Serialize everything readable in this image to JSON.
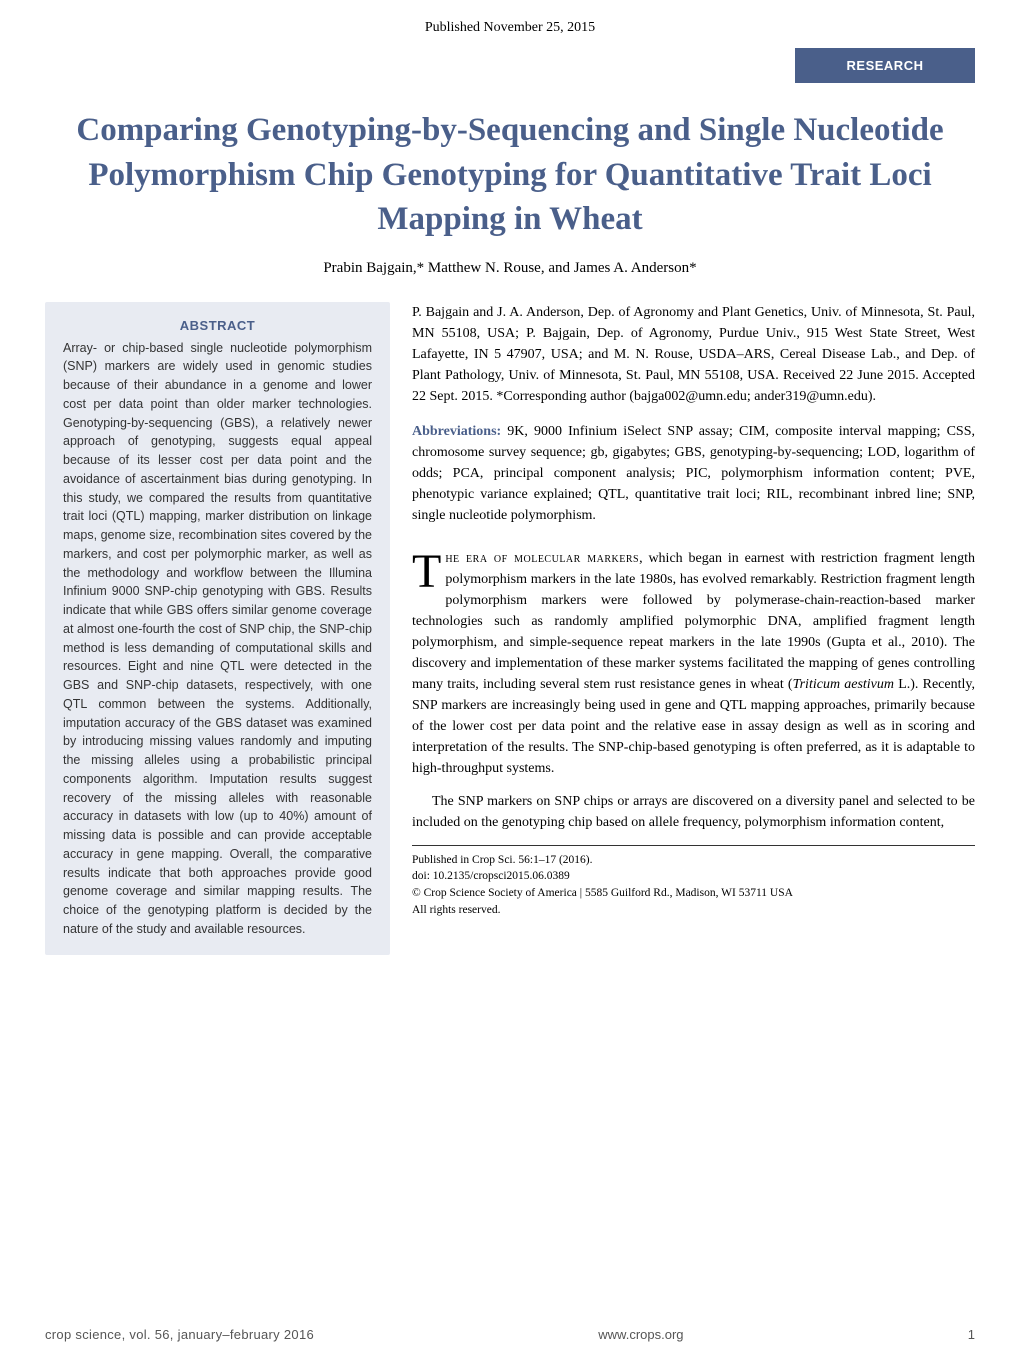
{
  "header": {
    "published": "Published November 25, 2015",
    "badge": "RESEARCH"
  },
  "title": "Comparing Genotyping-by-Sequencing and Single Nucleotide Polymorphism Chip Genotyping for Quantitative Trait Loci Mapping in Wheat",
  "authors": "Prabin Bajgain,* Matthew N. Rouse, and James A. Anderson*",
  "abstract": {
    "heading": "ABSTRACT",
    "text": "Array- or chip-based single nucleotide polymorphism (SNP) markers are widely used in genomic studies because of their abundance in a genome and lower cost per data point than older marker technologies. Genotyping-by-sequencing (GBS), a relatively newer approach of genotyping, suggests equal appeal because of its lesser cost per data point and the avoidance of ascertainment bias during genotyping. In this study, we compared the results from quantitative trait loci (QTL) mapping, marker distribution on linkage maps, genome size, recombination sites covered by the markers, and cost per polymorphic marker, as well as the methodology and workflow between the Illumina Infinium 9000 SNP-chip genotyping with GBS. Results indicate that while GBS offers similar genome coverage at almost one-fourth the cost of SNP chip, the SNP-chip method is less demanding of computational skills and resources. Eight and nine QTL were detected in the GBS and SNP-chip datasets, respectively, with one QTL common between the systems. Additionally, imputation accuracy of the GBS dataset was examined by introducing missing values randomly and imputing the missing alleles using a probabilistic principal components algorithm. Imputation results suggest recovery of the missing alleles with reasonable accuracy in datasets with low (up to 40%) amount of missing data is possible and can provide acceptable accuracy in gene mapping. Overall, the comparative results indicate that both approaches provide good genome coverage and similar mapping results. The choice of the genotyping platform is decided by the nature of the study and available resources."
  },
  "affiliations": "P. Bajgain and J. A. Anderson, Dep. of Agronomy and Plant Genetics, Univ. of Minnesota, St. Paul, MN 55108, USA; P. Bajgain, Dep. of Agronomy, Purdue Univ., 915 West State Street, West Lafayette, IN 5 47907, USA; and M. N. Rouse, USDA–ARS, Cereal Disease Lab., and Dep. of Plant Pathology, Univ. of Minnesota, St. Paul, MN 55108, USA. Received 22 June 2015. Accepted 22 Sept. 2015. *Corresponding author (bajga002@umn.edu; ander319@umn.edu).",
  "abbreviations": {
    "label": "Abbreviations:",
    "text": " 9K, 9000 Infinium iSelect SNP assay; CIM, composite interval mapping; CSS, chromosome survey sequence; gb, gigabytes; GBS, genotyping-by-sequencing; LOD, logarithm of odds; PCA, principal component analysis; PIC, polymorphism information content; PVE, phenotypic variance explained; QTL, quantitative trait loci; RIL, recombinant inbred line; SNP, single nucleotide polymorphism."
  },
  "body": {
    "dropcap": "T",
    "smallcaps_lead": "he era of molecular markers",
    "para1_rest": ", which began in earnest with restriction fragment length polymorphism markers in the late 1980s, has evolved remarkably. Restriction fragment length polymorphism markers were followed by polymerase-chain-reaction-based marker technologies such as randomly amplified polymorphic DNA, amplified fragment length polymorphism, and simple-sequence repeat markers in the late 1990s (Gupta et al., 2010). The discovery and implementation of these marker systems facilitated the mapping of genes controlling many traits, including several stem rust resistance genes in wheat (",
    "para1_italic": "Triticum aestivum",
    "para1_end": " L.). Recently, SNP markers are increasingly being used in gene and QTL mapping approaches, primarily because of the lower cost per data point and the relative ease in assay design as well as in scoring and interpretation of the results. The SNP-chip-based genotyping is often preferred, as it is adaptable to high-throughput systems.",
    "para2": "The SNP markers on SNP chips or arrays are discovered on a diversity panel and selected to be included on the genotyping chip based on allele frequency, polymorphism information content,"
  },
  "citation": {
    "line1": "Published in Crop Sci. 56:1–17 (2016).",
    "line2": "doi: 10.2135/cropsci2015.06.0389",
    "line3": "© Crop Science Society of America | 5585 Guilford Rd., Madison, WI 53711 USA",
    "line4": "All rights reserved."
  },
  "footer": {
    "left": "crop science, vol. 56, january–february 2016",
    "center": "www.crops.org",
    "page": "1"
  },
  "colors": {
    "primary": "#4a5f8a",
    "abstract_bg": "#e8ebf2",
    "text": "#000000",
    "abstract_text": "#333333",
    "footer_text": "#555555"
  }
}
